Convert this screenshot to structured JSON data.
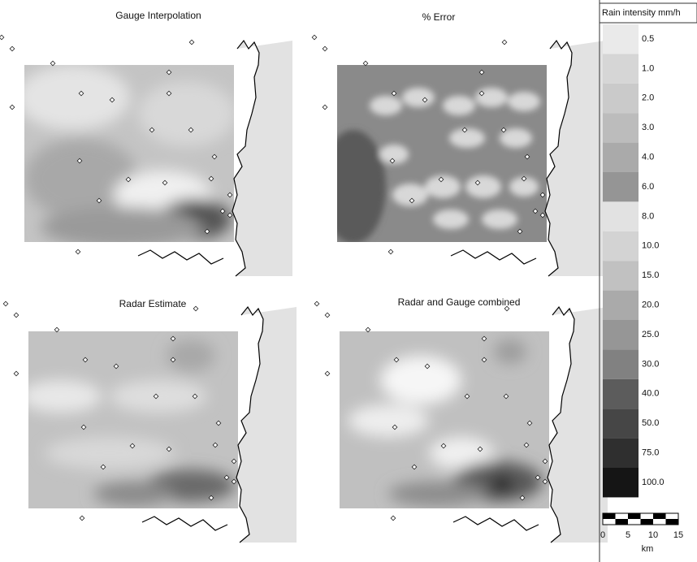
{
  "panels": [
    {
      "title": "Gauge Interpolation"
    },
    {
      "title": "% Error"
    },
    {
      "title": "Radar Estimate"
    },
    {
      "title": "Radar and Gauge combined"
    }
  ],
  "legend": {
    "title": "Rain intensity mm/h",
    "entries": [
      {
        "label": "0.5",
        "color": "#eaeaea"
      },
      {
        "label": "1.0",
        "color": "#d6d6d6"
      },
      {
        "label": "2.0",
        "color": "#cacaca"
      },
      {
        "label": "3.0",
        "color": "#bcbcbc"
      },
      {
        "label": "4.0",
        "color": "#aaaaaa"
      },
      {
        "label": "6.0",
        "color": "#959595"
      },
      {
        "label": "8.0",
        "color": "#e2e2e2"
      },
      {
        "label": "10.0",
        "color": "#d3d3d3"
      },
      {
        "label": "15.0",
        "color": "#c1c1c1"
      },
      {
        "label": "20.0",
        "color": "#aaaaaa"
      },
      {
        "label": "25.0",
        "color": "#969696"
      },
      {
        "label": "30.0",
        "color": "#818181"
      },
      {
        "label": "40.0",
        "color": "#5c5c5c"
      },
      {
        "label": "50.0",
        "color": "#464646"
      },
      {
        "label": "75.0",
        "color": "#2f2f2f"
      },
      {
        "label": "100.0",
        "color": "#151515"
      }
    ],
    "scale_labels": [
      "0",
      "5",
      "10",
      "15"
    ],
    "scale_unit": "km"
  }
}
